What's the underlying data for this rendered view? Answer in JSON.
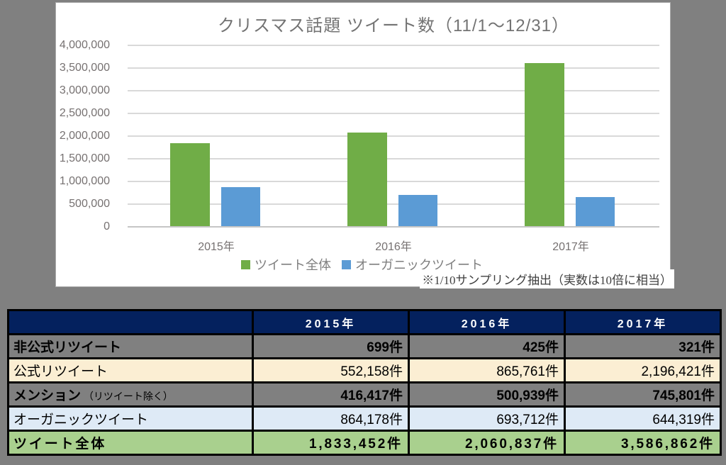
{
  "page": {
    "background_color": "#808080"
  },
  "chart": {
    "title": "クリスマス話題 ツイート数（11/1～12/31）",
    "note": "※1/10サンプリング抽出（実数は10倍に相当）",
    "colors": {
      "panel_bg": "#FFFFFF",
      "grid": "#D9D9D9",
      "axis_text": "#767171",
      "title_text": "#737373",
      "legend_text": "#7F7F7F"
    }
  },
  "chart_data": {
    "type": "bar",
    "title": "クリスマス話題 ツイート数（11/1～12/31）",
    "categories": [
      "2015年",
      "2016年",
      "2017年"
    ],
    "series": [
      {
        "name": "ツイート全体",
        "color": "#70AD47",
        "values": [
          1833452,
          2060837,
          3586862
        ]
      },
      {
        "name": "オーガニックツイート",
        "color": "#5B9BD5",
        "values": [
          864178,
          693712,
          644319
        ]
      }
    ],
    "ylim": [
      0,
      4000000
    ],
    "ytick_step": 500000,
    "ytick_labels_top_to_bottom": [
      "4,000,000",
      "3,500,000",
      "3,000,000",
      "2,500,000",
      "2,000,000",
      "1,500,000",
      "1,000,000",
      "500,000",
      "0"
    ],
    "grid": true,
    "legend_position": "bottom",
    "annotation": "※1/10サンプリング抽出（実数は10倍に相当）"
  },
  "table": {
    "header": [
      "",
      "2015年",
      "2016年",
      "2017年"
    ],
    "rows": [
      {
        "label": "非公式リツイート",
        "label_note": "",
        "values": [
          "699件",
          "425件",
          "321件"
        ],
        "style": "gray",
        "bold": true,
        "spaced": false
      },
      {
        "label": "公式リツイート",
        "label_note": "",
        "values": [
          "552,158件",
          "865,761件",
          "2,196,421件"
        ],
        "style": "cream",
        "bold": false,
        "spaced": false
      },
      {
        "label": "メンション",
        "label_note": "（リツイート除く）",
        "values": [
          "416,417件",
          "500,939件",
          "745,801件"
        ],
        "style": "gray",
        "bold": true,
        "spaced": false
      },
      {
        "label": "オーガニックツイート",
        "label_note": "",
        "values": [
          "864,178件",
          "693,712件",
          "644,319件"
        ],
        "style": "blue",
        "bold": false,
        "spaced": false
      },
      {
        "label": "ツイート全体",
        "label_note": "",
        "values": [
          "1,833,452件",
          "2,060,837件",
          "3,586,862件"
        ],
        "style": "green",
        "bold": true,
        "spaced": true
      }
    ],
    "colors": {
      "header_bg": "#04215E",
      "header_text": "#FFFFFF",
      "gray_row_bg": "#808080",
      "cream_row_bg": "#FBEED3",
      "blue_row_bg": "#DEEAF6",
      "green_row_bg": "#A9D08E",
      "border": "#000000"
    }
  }
}
